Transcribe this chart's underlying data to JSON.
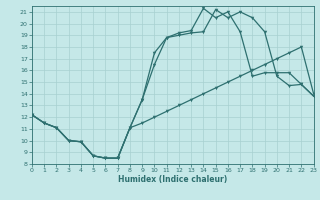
{
  "xlabel": "Humidex (Indice chaleur)",
  "bg_color": "#c5e8e8",
  "grid_color": "#a8d0d0",
  "line_color": "#2e7070",
  "xlim": [
    0,
    23
  ],
  "ylim": [
    8,
    21.5
  ],
  "xticks": [
    0,
    1,
    2,
    3,
    4,
    5,
    6,
    7,
    8,
    9,
    10,
    11,
    12,
    13,
    14,
    15,
    16,
    17,
    18,
    19,
    20,
    21,
    22,
    23
  ],
  "yticks": [
    8,
    9,
    10,
    11,
    12,
    13,
    14,
    15,
    16,
    17,
    18,
    19,
    20,
    21
  ],
  "line1_x": [
    0,
    1,
    2,
    3,
    4,
    5,
    6,
    7,
    8,
    9,
    10,
    11,
    12,
    13,
    14,
    15,
    16,
    17,
    18,
    19,
    20,
    21,
    22,
    23
  ],
  "line1_y": [
    12.2,
    11.5,
    11.1,
    10.0,
    9.9,
    8.7,
    8.5,
    8.5,
    11.1,
    11.5,
    12.0,
    12.5,
    13.0,
    13.5,
    14.0,
    14.5,
    15.0,
    15.5,
    16.0,
    16.5,
    17.0,
    17.5,
    18.0,
    14.0
  ],
  "line2_x": [
    0,
    1,
    2,
    3,
    4,
    5,
    6,
    7,
    8,
    9,
    10,
    11,
    12,
    13,
    14,
    15,
    16,
    17,
    18,
    19,
    20,
    21,
    22,
    23
  ],
  "line2_y": [
    12.2,
    11.5,
    11.1,
    10.0,
    9.9,
    8.7,
    8.5,
    8.5,
    11.1,
    13.5,
    16.5,
    18.8,
    19.2,
    19.4,
    21.3,
    20.5,
    21.0,
    19.3,
    15.5,
    15.8,
    15.8,
    15.8,
    14.8,
    13.8
  ],
  "line3_x": [
    0,
    1,
    2,
    3,
    4,
    5,
    6,
    7,
    8,
    9,
    10,
    11,
    12,
    13,
    14,
    15,
    16,
    17,
    18,
    19,
    20,
    21,
    22,
    23
  ],
  "line3_y": [
    12.2,
    11.5,
    11.1,
    10.0,
    9.9,
    8.7,
    8.5,
    8.5,
    11.1,
    13.5,
    17.5,
    18.8,
    19.0,
    19.2,
    19.3,
    21.2,
    20.5,
    21.0,
    20.5,
    19.3,
    15.5,
    14.7,
    14.8,
    13.8
  ]
}
